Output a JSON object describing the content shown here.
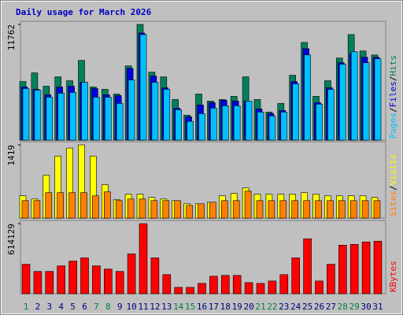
{
  "chart_data": [
    {
      "type": "bar",
      "title": "Daily usage for March 2026",
      "ylim": [
        0,
        11762
      ],
      "yticks": [
        11762
      ],
      "legend_separator": "/",
      "series": [
        {
          "name": "Hits",
          "color": "#00805c",
          "values": [
            5960,
            6835,
            5483,
            6437,
            6040,
            8106,
            5404,
            5166,
            4689,
            7550,
            11762,
            6914,
            6437,
            4132,
            2543,
            4689,
            3974,
            4132,
            4450,
            6437,
            4132,
            2861,
            3735,
            6596,
            9934,
            4450,
            6040,
            8344,
            10728,
            9060,
            8662
          ]
        },
        {
          "name": "Files",
          "color": "#0000e0",
          "values": [
            5404,
            5166,
            4609,
            5404,
            5483,
            5881,
            5245,
            4609,
            4530,
            7311,
            10887,
            6517,
            5324,
            3258,
            2384,
            3576,
            3815,
            4053,
            3974,
            3974,
            3179,
            2702,
            3020,
            5960,
            9298,
            3815,
            5324,
            7868,
            8821,
            8424,
            8424
          ]
        },
        {
          "name": "Pages",
          "color": "#00c0ff",
          "values": [
            5245,
            5086,
            4371,
            4768,
            4848,
            5881,
            4371,
            4371,
            3735,
            6119,
            10728,
            5881,
            5166,
            3099,
            1907,
            2702,
            3258,
            3497,
            3497,
            3974,
            2861,
            2464,
            2861,
            5722,
            8662,
            3656,
            5166,
            7709,
            8980,
            7868,
            8265
          ]
        }
      ]
    },
    {
      "type": "bar",
      "ylim": [
        0,
        1419
      ],
      "yticks": [
        1419
      ],
      "legend_separator": "/",
      "series": [
        {
          "name": "Visits",
          "color": "#ffff00",
          "values": [
            432,
            370,
            833,
            1203,
            1357,
            1419,
            1203,
            648,
            355,
            463,
            463,
            401,
            370,
            339,
            278,
            278,
            308,
            432,
            478,
            586,
            463,
            463,
            463,
            463,
            493,
            463,
            432,
            432,
            432,
            432,
            401
          ]
        },
        {
          "name": "Sites",
          "color": "#ff8000",
          "values": [
            339,
            339,
            493,
            493,
            493,
            493,
            432,
            509,
            339,
            370,
            370,
            339,
            339,
            339,
            247,
            278,
            308,
            339,
            339,
            524,
            339,
            339,
            339,
            339,
            339,
            339,
            339,
            339,
            339,
            339,
            339
          ]
        }
      ]
    },
    {
      "type": "bar",
      "ylim": [
        0,
        614129
      ],
      "yticks": [
        614129
      ],
      "categories": [
        "1",
        "2",
        "3",
        "4",
        "5",
        "6",
        "7",
        "8",
        "9",
        "10",
        "11",
        "12",
        "13",
        "14",
        "15",
        "16",
        "17",
        "18",
        "19",
        "20",
        "21",
        "22",
        "23",
        "24",
        "25",
        "26",
        "27",
        "28",
        "29",
        "30",
        "31"
      ],
      "category_colors": [
        "#008040",
        "#000080",
        "#000080",
        "#000080",
        "#000080",
        "#000080",
        "#008040",
        "#008040",
        "#000080",
        "#000080",
        "#000080",
        "#000080",
        "#000080",
        "#008040",
        "#008040",
        "#000080",
        "#000080",
        "#000080",
        "#000080",
        "#000080",
        "#008040",
        "#008040",
        "#000080",
        "#000080",
        "#000080",
        "#000080",
        "#000080",
        "#008040",
        "#008040",
        "#000080",
        "#000080"
      ],
      "series": [
        {
          "name": "KBytes",
          "color": "#ff0000",
          "values": [
            258223,
            195412,
            195412,
            244265,
            286139,
            314055,
            244265,
            216349,
            195412,
            348950,
            614129,
            314055,
            167496,
            55832,
            55832,
            90727,
            153538,
            160517,
            160517,
            97706,
            90727,
            111664,
            167496,
            314055,
            481551,
            111664,
            258223,
            425719,
            432698,
            453635,
            460614
          ]
        }
      ]
    }
  ]
}
